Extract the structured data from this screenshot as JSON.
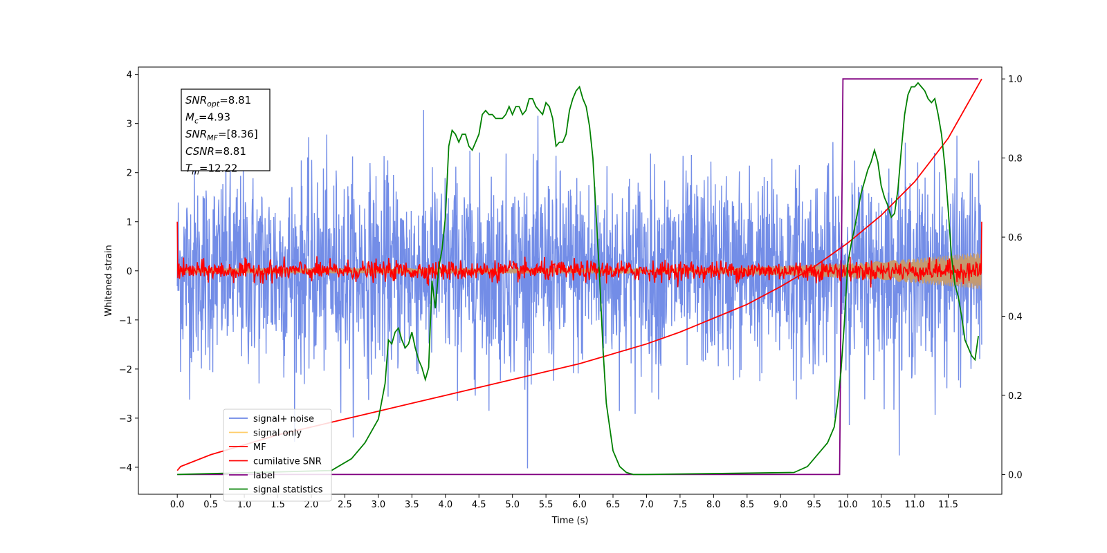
{
  "chart_data": {
    "type": "line",
    "xlabel": "Time (s)",
    "ylabel": "Whitened strain",
    "xlim": [
      -0.58,
      12.3
    ],
    "ylim_left": [
      -4.55,
      4.15
    ],
    "ylim_right": [
      -0.05,
      1.03
    ],
    "x_ticks": [
      0.0,
      0.5,
      1.0,
      1.5,
      2.0,
      2.5,
      3.0,
      3.5,
      4.0,
      4.5,
      5.0,
      5.5,
      6.0,
      6.5,
      7.0,
      7.5,
      8.0,
      8.5,
      9.0,
      9.5,
      10.0,
      10.5,
      11.0,
      11.5
    ],
    "x_tick_labels": [
      "0.0",
      "0.5",
      "1.0",
      "1.5",
      "2.0",
      "2.5",
      "3.0",
      "3.5",
      "4.0",
      "4.5",
      "5.0",
      "5.5",
      "6.0",
      "6.5",
      "7.0",
      "7.5",
      "8.0",
      "8.5",
      "9.0",
      "9.5",
      "10.0",
      "10.5",
      "11.0",
      "11.5"
    ],
    "y_ticks_left": [
      -4,
      -3,
      -2,
      -1,
      0,
      1,
      2,
      3,
      4
    ],
    "y_tick_labels_left": [
      "−4",
      "−3",
      "−2",
      "−1",
      "0",
      "1",
      "2",
      "3",
      "4"
    ],
    "y_ticks_right": [
      0.0,
      0.2,
      0.4,
      0.6,
      0.8,
      1.0
    ],
    "y_tick_labels_right": [
      "0.0",
      "0.2",
      "0.4",
      "0.6",
      "0.8",
      "1.0"
    ],
    "legend_position": "lower-left",
    "legend": [
      {
        "label": "signal+ noise",
        "color": "#6b87e6"
      },
      {
        "label": "signal only",
        "color": "#ffcc66"
      },
      {
        "label": "MF",
        "color": "#ff0000"
      },
      {
        "label": "cumilative SNR",
        "color": "#ff0000"
      },
      {
        "label": "label",
        "color": "#800080"
      },
      {
        "label": "signal statistics",
        "color": "#008000"
      }
    ],
    "annotation": [
      {
        "sym": "SNR",
        "sub": "opt",
        "rest": "=8.81"
      },
      {
        "sym": "M",
        "sub": "c",
        "rest": "=4.93"
      },
      {
        "sym": "SNR",
        "sub": "MF",
        "rest": "=[8.36]"
      },
      {
        "sym": "CSNR",
        "sub": "",
        "rest": "=8.81"
      },
      {
        "sym": "T",
        "sub": "m",
        "rest": "=12.22"
      }
    ],
    "series": [
      {
        "name": "signal+ noise",
        "axis": "left",
        "color": "#6b87e6",
        "x_range": [
          0.0,
          12.0
        ],
        "band_mean": 0.0,
        "band_std": 1.0,
        "band_min": -4.15,
        "band_max": 3.8
      },
      {
        "name": "signal only",
        "axis": "left",
        "color": "#ffcc66",
        "x_range": [
          0.0,
          12.0
        ],
        "envelope": {
          "x": [
            0.0,
            8.0,
            9.0,
            10.0,
            11.0,
            12.0
          ],
          "amplitude": [
            0.05,
            0.06,
            0.1,
            0.15,
            0.25,
            0.38
          ]
        }
      },
      {
        "name": "MF",
        "axis": "left",
        "color": "#ff0000",
        "x_range": [
          0.0,
          12.0
        ],
        "band_mean": 0.0,
        "band_std": 0.1
      },
      {
        "name": "cumilative SNR",
        "axis": "right",
        "color": "#ff0000",
        "x": [
          0.0,
          0.05,
          0.5,
          1.0,
          1.5,
          2.0,
          2.5,
          3.0,
          3.5,
          4.0,
          4.5,
          5.0,
          5.5,
          6.0,
          6.5,
          7.0,
          7.5,
          8.0,
          8.5,
          9.0,
          9.5,
          10.0,
          10.5,
          11.0,
          11.5,
          12.0
        ],
        "y": [
          0.01,
          0.02,
          0.05,
          0.075,
          0.1,
          0.12,
          0.14,
          0.16,
          0.18,
          0.2,
          0.22,
          0.24,
          0.26,
          0.28,
          0.305,
          0.33,
          0.36,
          0.395,
          0.43,
          0.475,
          0.525,
          0.585,
          0.655,
          0.74,
          0.85,
          1.0
        ]
      },
      {
        "name": "label",
        "axis": "right",
        "color": "#800080",
        "x": [
          0.0,
          9.88,
          9.93,
          11.95
        ],
        "y": [
          0.0,
          0.0,
          1.0,
          1.0
        ]
      },
      {
        "name": "signal statistics",
        "axis": "right",
        "color": "#008000",
        "x": [
          0.0,
          2.3,
          2.4,
          2.6,
          2.8,
          3.0,
          3.1,
          3.15,
          3.2,
          3.25,
          3.3,
          3.35,
          3.4,
          3.45,
          3.5,
          3.55,
          3.6,
          3.65,
          3.7,
          3.75,
          3.8,
          3.85,
          3.9,
          3.95,
          4.0,
          4.05,
          4.1,
          4.15,
          4.2,
          4.25,
          4.3,
          4.35,
          4.4,
          4.45,
          4.5,
          4.55,
          4.6,
          4.65,
          4.7,
          4.75,
          4.8,
          4.85,
          4.9,
          4.95,
          5.0,
          5.05,
          5.1,
          5.15,
          5.2,
          5.25,
          5.3,
          5.35,
          5.4,
          5.45,
          5.5,
          5.55,
          5.6,
          5.65,
          5.7,
          5.75,
          5.8,
          5.85,
          5.9,
          5.95,
          6.0,
          6.05,
          6.1,
          6.15,
          6.2,
          6.25,
          6.3,
          6.35,
          6.4,
          6.5,
          6.6,
          6.7,
          6.8,
          7.0,
          9.2,
          9.4,
          9.6,
          9.7,
          9.8,
          9.85,
          9.9,
          9.95,
          10.0,
          10.05,
          10.1,
          10.2,
          10.3,
          10.35,
          10.4,
          10.45,
          10.5,
          10.55,
          10.6,
          10.65,
          10.7,
          10.75,
          10.8,
          10.85,
          10.9,
          10.95,
          11.0,
          11.05,
          11.1,
          11.15,
          11.2,
          11.25,
          11.3,
          11.35,
          11.4,
          11.45,
          11.5,
          11.55,
          11.6,
          11.65,
          11.7,
          11.75,
          11.8,
          11.85,
          11.9,
          11.95
        ],
        "y": [
          0.0,
          0.01,
          0.02,
          0.04,
          0.08,
          0.14,
          0.23,
          0.34,
          0.33,
          0.36,
          0.37,
          0.34,
          0.32,
          0.33,
          0.36,
          0.32,
          0.29,
          0.27,
          0.24,
          0.27,
          0.49,
          0.42,
          0.52,
          0.57,
          0.65,
          0.83,
          0.87,
          0.86,
          0.84,
          0.86,
          0.86,
          0.83,
          0.82,
          0.84,
          0.86,
          0.91,
          0.92,
          0.91,
          0.91,
          0.9,
          0.9,
          0.9,
          0.91,
          0.93,
          0.91,
          0.93,
          0.93,
          0.91,
          0.92,
          0.95,
          0.95,
          0.93,
          0.92,
          0.91,
          0.94,
          0.93,
          0.9,
          0.83,
          0.84,
          0.84,
          0.86,
          0.92,
          0.95,
          0.97,
          0.98,
          0.95,
          0.93,
          0.88,
          0.8,
          0.65,
          0.5,
          0.32,
          0.18,
          0.06,
          0.02,
          0.005,
          0.0,
          0.0,
          0.005,
          0.02,
          0.06,
          0.08,
          0.12,
          0.18,
          0.26,
          0.38,
          0.53,
          0.58,
          0.62,
          0.71,
          0.77,
          0.79,
          0.82,
          0.79,
          0.73,
          0.7,
          0.68,
          0.65,
          0.66,
          0.72,
          0.82,
          0.91,
          0.96,
          0.98,
          0.98,
          0.99,
          0.98,
          0.97,
          0.95,
          0.94,
          0.95,
          0.91,
          0.86,
          0.78,
          0.67,
          0.55,
          0.48,
          0.45,
          0.4,
          0.34,
          0.32,
          0.3,
          0.29,
          0.35
        ]
      }
    ]
  }
}
